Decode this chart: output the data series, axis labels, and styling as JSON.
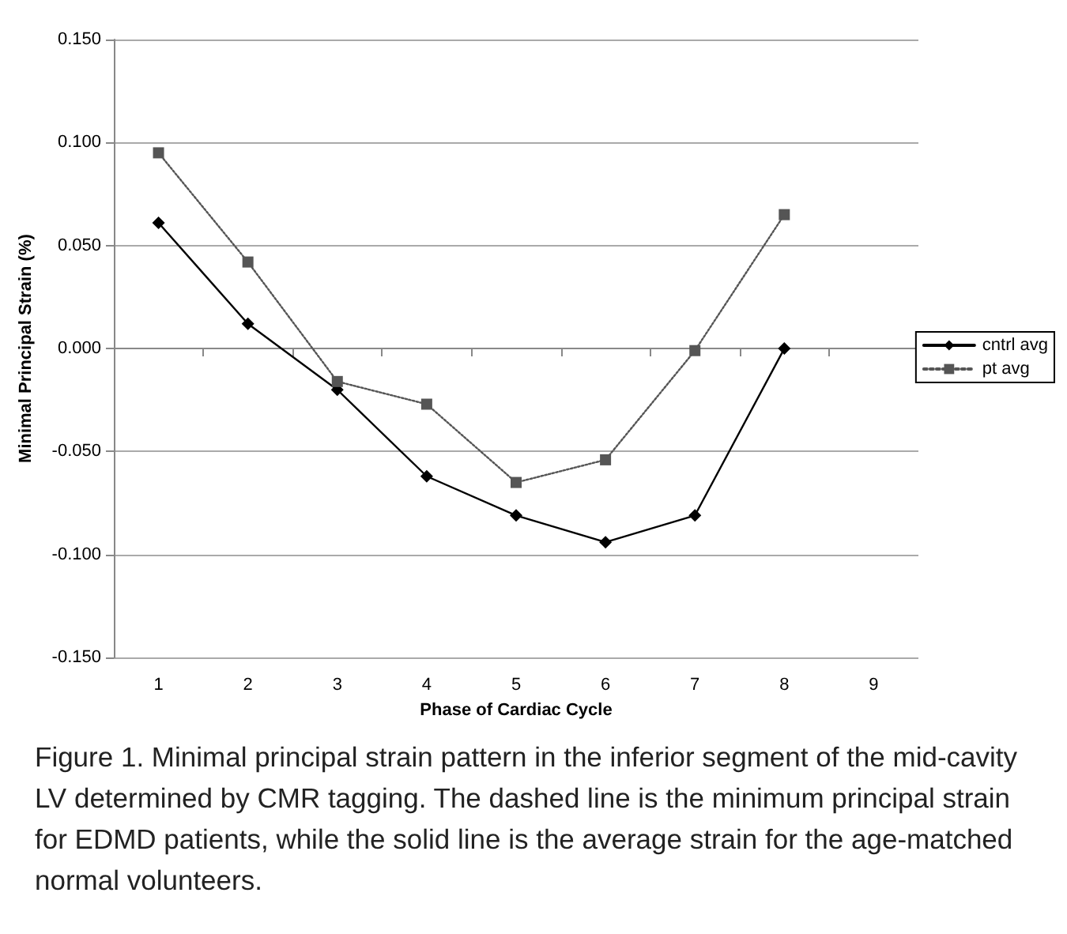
{
  "chart_data": {
    "type": "line",
    "xlabel": "Phase of Cardiac Cycle",
    "ylabel": "Minimal Principal Strain (%)",
    "categories": [
      "1",
      "2",
      "3",
      "4",
      "5",
      "6",
      "7",
      "8",
      "9"
    ],
    "series": [
      {
        "name": "cntrl avg",
        "color": "#000000",
        "marker": "diamond",
        "line_style": "solid",
        "values": [
          0.061,
          0.012,
          -0.02,
          -0.062,
          -0.081,
          -0.094,
          -0.081,
          0.0,
          null
        ]
      },
      {
        "name": "pt avg",
        "color": "#555555",
        "marker": "square",
        "line_style": "dotted",
        "values": [
          0.095,
          0.042,
          -0.016,
          -0.027,
          -0.065,
          -0.054,
          -0.001,
          0.065,
          null
        ]
      }
    ],
    "ylim": [
      -0.15,
      0.15
    ],
    "yticks": [
      {
        "value": -0.15,
        "label": "-0.150"
      },
      {
        "value": -0.1,
        "label": "-0.100"
      },
      {
        "value": -0.05,
        "label": "-0.050"
      },
      {
        "value": 0,
        "label": "0.000"
      },
      {
        "value": 0.05,
        "label": "0.050"
      },
      {
        "value": 0.1,
        "label": "0.100"
      },
      {
        "value": 0.15,
        "label": "0.150"
      }
    ],
    "grid": "y",
    "legend": "right",
    "annotations": [
      "Figure 1. Minimal principal strain pattern in the inferior segment of the mid-cavity LV determined by CMR tagging. The dashed line is the minimum principal strain for EDMD patients, while the solid line is the average strain for the age-matched normal volunteers."
    ]
  }
}
